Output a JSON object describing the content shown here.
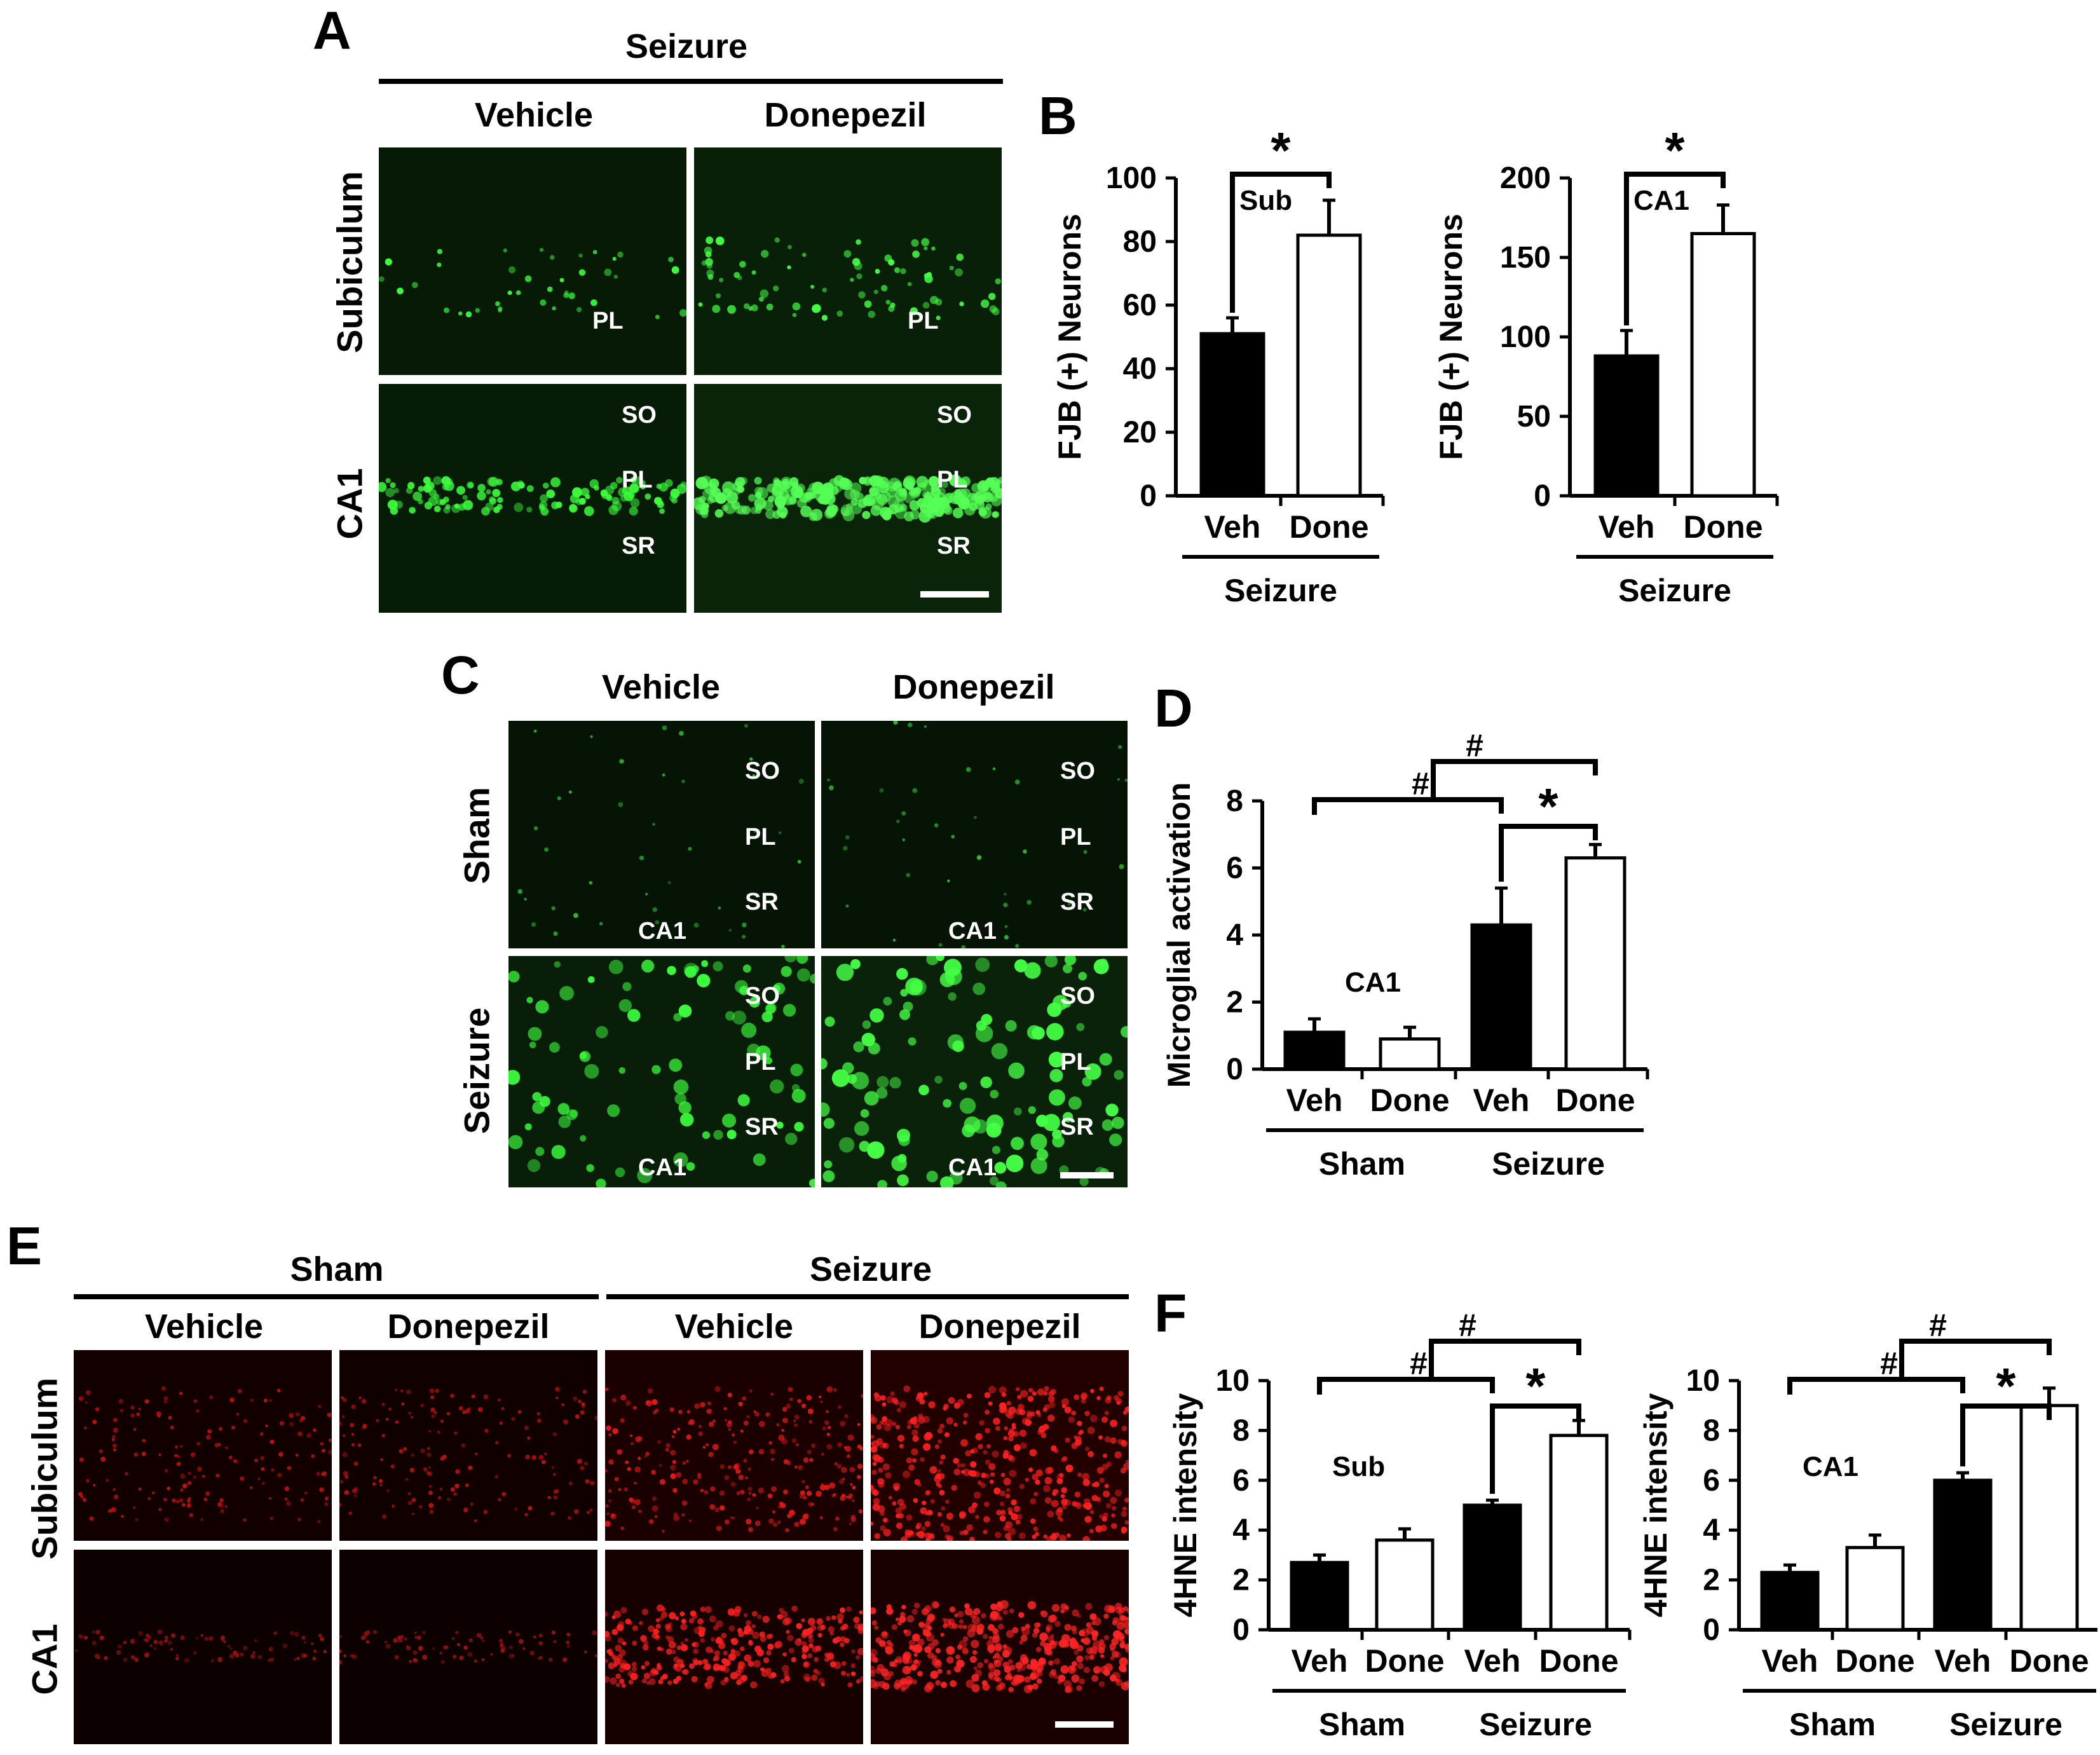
{
  "panels": {
    "A": {
      "letter": "A",
      "group_header": "Seizure",
      "col_headers": [
        "Vehicle",
        "Donepezil"
      ],
      "row_labels": [
        "Subiculum",
        "CA1"
      ],
      "region_labels": {
        "subiculum": [
          "PL"
        ],
        "ca1": [
          "SO",
          "PL",
          "SR"
        ]
      }
    },
    "C": {
      "letter": "C",
      "col_headers": [
        "Vehicle",
        "Donepezil"
      ],
      "row_labels": [
        "Sham",
        "Seizure"
      ],
      "region_labels": [
        "SO",
        "PL",
        "SR"
      ],
      "area_label": "CA1"
    },
    "E": {
      "letter": "E",
      "group_headers": [
        "Sham",
        "Seizure"
      ],
      "col_headers": [
        "Vehicle",
        "Donepezil",
        "Vehicle",
        "Donepezil"
      ],
      "row_labels": [
        "Subiculum",
        "CA1"
      ]
    },
    "B": {
      "letter": "B"
    },
    "D": {
      "letter": "D"
    },
    "F": {
      "letter": "F"
    }
  },
  "colors": {
    "vehicle_bar": "#000000",
    "donepezil_bar": "#ffffff",
    "fluorescence_green": "#22ff22",
    "fluorescence_red": "#ff2020"
  },
  "chart_data": [
    {
      "id": "B-sub",
      "type": "bar",
      "title": "",
      "annotation": "Sub",
      "ylabel": "FJB (+) Neurons",
      "ylim": [
        0,
        100
      ],
      "yticks": [
        0,
        20,
        40,
        60,
        80,
        100
      ],
      "categories": [
        "Veh",
        "Done"
      ],
      "group_labels": [
        "Seizure"
      ],
      "values": [
        51,
        82
      ],
      "errors": [
        5,
        11
      ],
      "significance": [
        "*"
      ]
    },
    {
      "id": "B-ca1",
      "type": "bar",
      "title": "",
      "annotation": "CA1",
      "ylabel": "FJB (+) Neurons",
      "ylim": [
        0,
        200
      ],
      "yticks": [
        0,
        50,
        100,
        150,
        200
      ],
      "categories": [
        "Veh",
        "Done"
      ],
      "group_labels": [
        "Seizure"
      ],
      "values": [
        88,
        165
      ],
      "errors": [
        16,
        18
      ],
      "significance": [
        "*"
      ]
    },
    {
      "id": "D",
      "type": "bar",
      "title": "",
      "annotation": "CA1",
      "ylabel": "Microglial activation",
      "ylim": [
        0,
        8
      ],
      "yticks": [
        0,
        2,
        4,
        6,
        8
      ],
      "categories": [
        "Veh",
        "Done",
        "Veh",
        "Done"
      ],
      "group_labels": [
        "Sham",
        "Seizure"
      ],
      "values": [
        1.1,
        0.9,
        4.3,
        6.3
      ],
      "errors": [
        0.4,
        0.35,
        1.1,
        0.4
      ],
      "significance": [
        "#",
        "#",
        "*"
      ]
    },
    {
      "id": "F-sub",
      "type": "bar",
      "title": "",
      "annotation": "Sub",
      "ylabel": "4HNE intensity",
      "ylim": [
        0,
        10
      ],
      "yticks": [
        0,
        2,
        4,
        6,
        8,
        10
      ],
      "categories": [
        "Veh",
        "Done",
        "Veh",
        "Done"
      ],
      "group_labels": [
        "Sham",
        "Seizure"
      ],
      "values": [
        2.7,
        3.6,
        5.0,
        7.8
      ],
      "errors": [
        0.3,
        0.45,
        0.2,
        0.6
      ],
      "significance": [
        "#",
        "#",
        "*"
      ]
    },
    {
      "id": "F-ca1",
      "type": "bar",
      "title": "",
      "annotation": "CA1",
      "ylabel": "4HNE intensity",
      "ylim": [
        0,
        10
      ],
      "yticks": [
        0,
        2,
        4,
        6,
        8,
        10
      ],
      "categories": [
        "Veh",
        "Done",
        "Veh",
        "Done"
      ],
      "group_labels": [
        "Sham",
        "Seizure"
      ],
      "values": [
        2.3,
        3.3,
        6.0,
        9.0
      ],
      "errors": [
        0.3,
        0.5,
        0.3,
        0.7
      ],
      "significance": [
        "#",
        "#",
        "*"
      ]
    }
  ]
}
